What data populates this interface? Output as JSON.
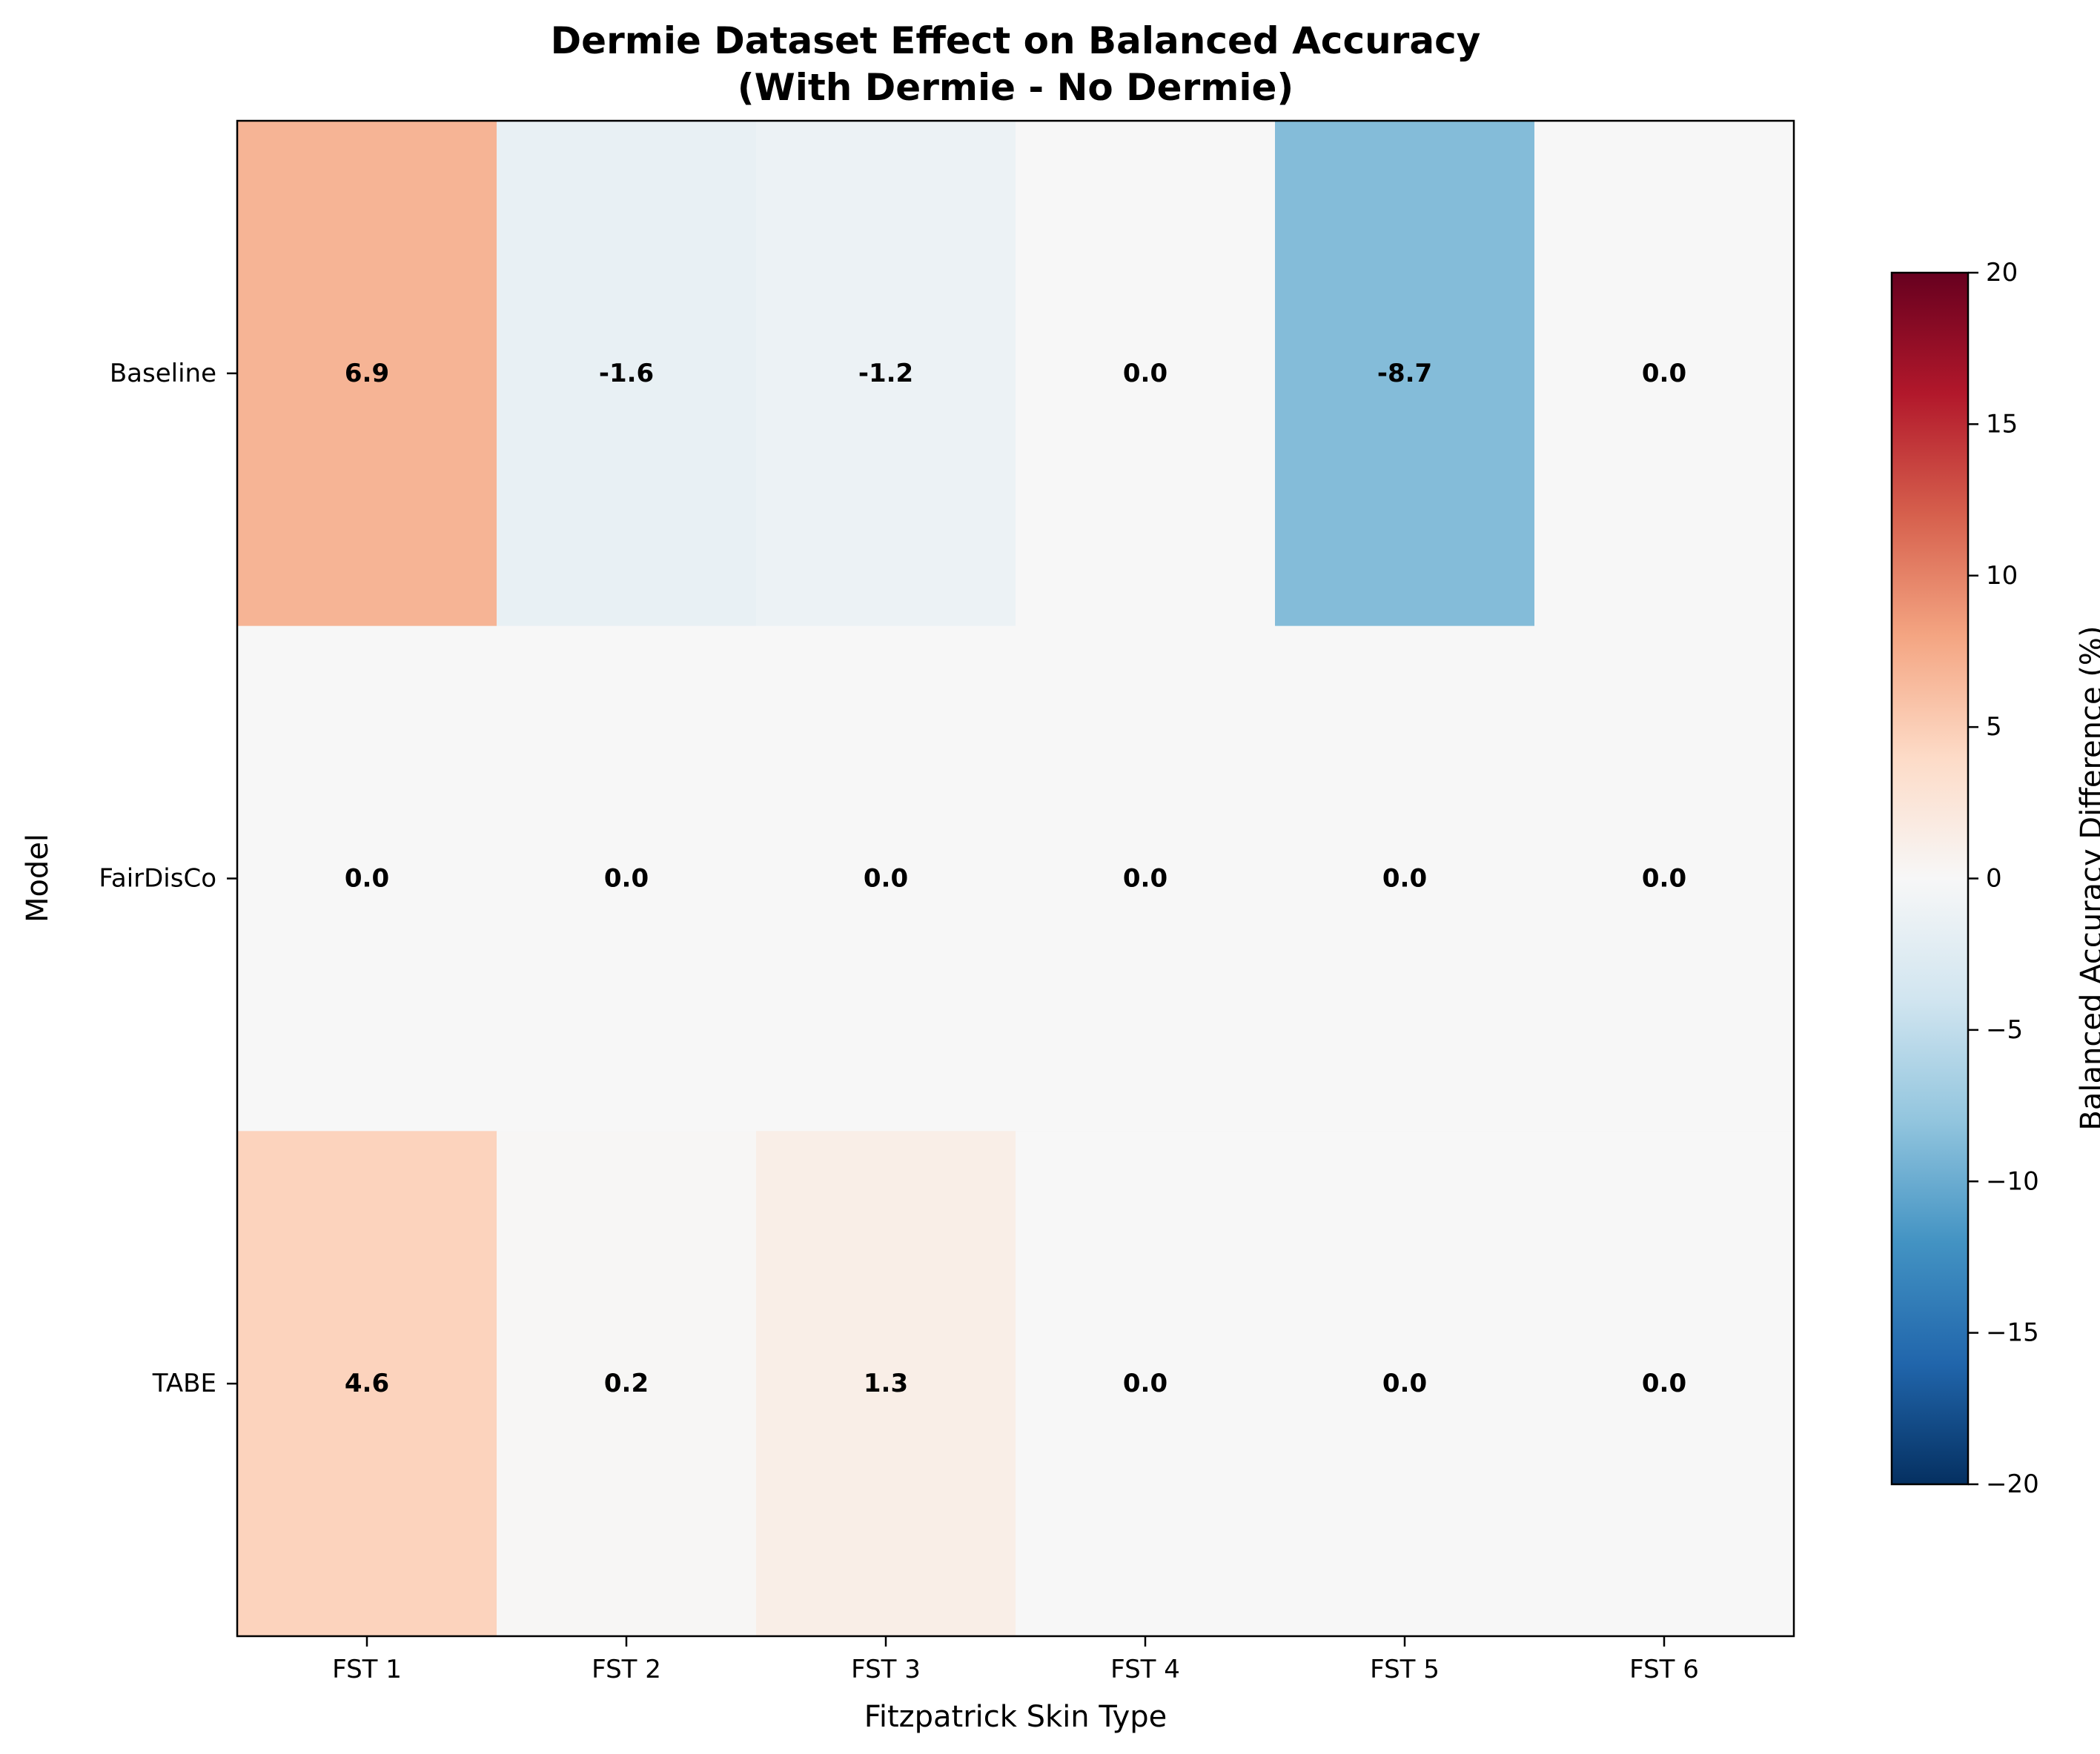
{
  "chart_data": {
    "type": "heatmap",
    "title": "Dermie Dataset Effect on Balanced Accuracy",
    "subtitle": "(With Dermie - No Dermie)",
    "xlabel": "Fitzpatrick Skin Type",
    "ylabel": "Model",
    "x_categories": [
      "FST 1",
      "FST 2",
      "FST 3",
      "FST 4",
      "FST 5",
      "FST 6"
    ],
    "y_categories": [
      "Baseline",
      "FairDisCo",
      "TABE"
    ],
    "values": [
      [
        6.9,
        -1.6,
        -1.2,
        0.0,
        -8.7,
        0.0
      ],
      [
        0.0,
        0.0,
        0.0,
        0.0,
        0.0,
        0.0
      ],
      [
        4.6,
        0.2,
        1.3,
        0.0,
        0.0,
        0.0
      ]
    ],
    "value_labels": [
      [
        "6.9",
        "-1.6",
        "-1.2",
        "0.0",
        "-8.7",
        "0.0"
      ],
      [
        "0.0",
        "0.0",
        "0.0",
        "0.0",
        "0.0",
        "0.0"
      ],
      [
        "4.6",
        "0.2",
        "1.3",
        "0.0",
        "0.0",
        "0.0"
      ]
    ],
    "colorbar": {
      "label": "Balanced Accuracy Difference (%)",
      "range": [
        -20,
        20
      ],
      "ticks": [
        20,
        15,
        10,
        5,
        0,
        -5,
        -10,
        -15,
        -20
      ],
      "tick_labels": [
        "20",
        "15",
        "10",
        "5",
        "0",
        "−5",
        "−10",
        "−15",
        "−20"
      ],
      "colormap": "RdBu_r",
      "colormap_stops": [
        "#053061",
        "#2166ac",
        "#4393c3",
        "#92c5de",
        "#d1e5f0",
        "#f7f7f7",
        "#fddbc7",
        "#f4a582",
        "#d6604d",
        "#b2182b",
        "#67001f"
      ]
    },
    "grid": false
  }
}
